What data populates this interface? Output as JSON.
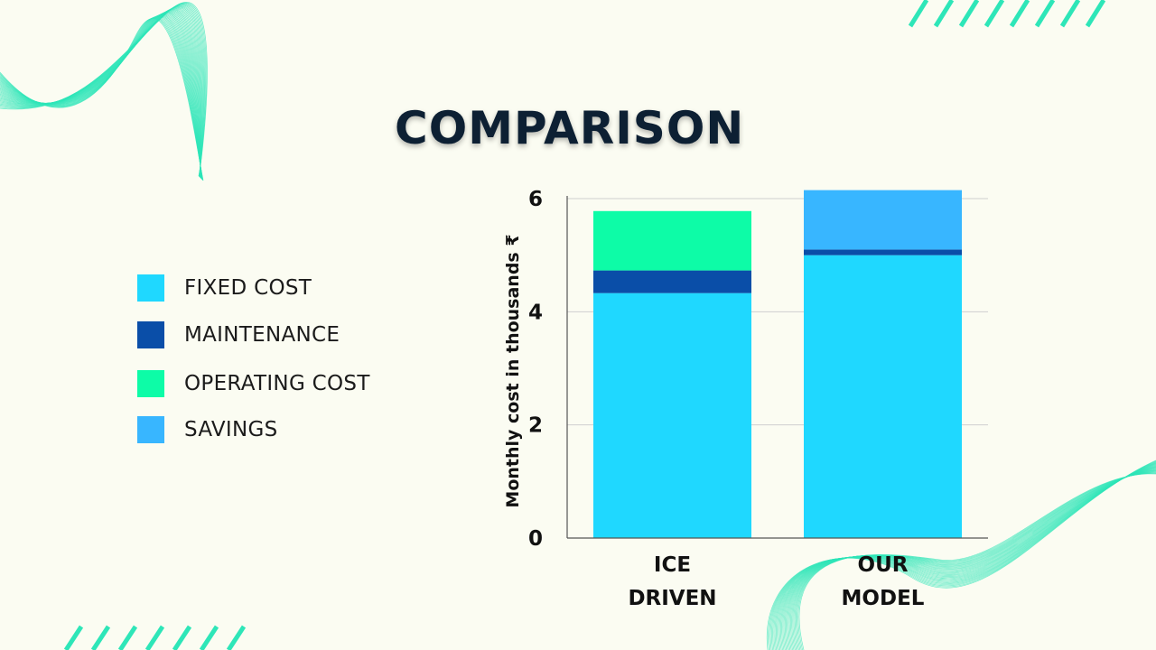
{
  "page": {
    "title": "COMPARISON"
  },
  "colors": {
    "background": "#fbfcf2",
    "fixed_cost": "#1fd8ff",
    "maintenance": "#0a4ea8",
    "operating_cost": "#0dfca7",
    "savings": "#38b6ff",
    "decoration": "#2ee6b8",
    "title": "#0d2033"
  },
  "legend": {
    "items": [
      {
        "label": "FIXED COST",
        "color": "#1fd8ff"
      },
      {
        "label": "MAINTENANCE",
        "color": "#0a4ea8"
      },
      {
        "label": "OPERATING COST",
        "color": "#0dfca7"
      },
      {
        "label": "SAVINGS",
        "color": "#38b6ff"
      }
    ]
  },
  "chart_data": {
    "type": "bar",
    "stacked": true,
    "categories": [
      "ICE DRIVEN",
      "OUR MODEL"
    ],
    "category_lines": [
      [
        "ICE",
        "DRIVEN"
      ],
      [
        "OUR",
        "MODEL"
      ]
    ],
    "series": [
      {
        "name": "FIXED COST",
        "color": "#1fd8ff",
        "values": [
          4.33,
          5.0
        ]
      },
      {
        "name": "MAINTENANCE",
        "color": "#0a4ea8",
        "values": [
          0.4,
          0.1
        ]
      },
      {
        "name": "OPERATING COST",
        "color": "#0dfca7",
        "values": [
          1.05,
          0
        ]
      },
      {
        "name": "SAVINGS",
        "color": "#38b6ff",
        "values": [
          0,
          1.05
        ]
      }
    ],
    "ylabel": "Monthly cost in thousands ₹",
    "ylim": [
      0,
      6
    ],
    "yticks": [
      0,
      2,
      4,
      6
    ],
    "grid": true,
    "legend_position": "left"
  }
}
